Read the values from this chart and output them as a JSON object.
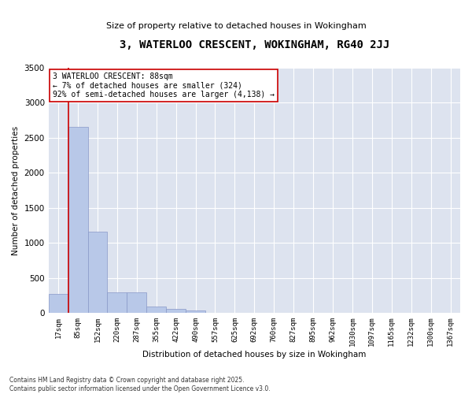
{
  "title": "3, WATERLOO CRESCENT, WOKINGHAM, RG40 2JJ",
  "subtitle": "Size of property relative to detached houses in Wokingham",
  "xlabel": "Distribution of detached houses by size in Wokingham",
  "ylabel": "Number of detached properties",
  "background_color": "#dde3ef",
  "bar_color": "#b8c8e8",
  "bar_edge_color": "#8898c8",
  "grid_color": "#ffffff",
  "bar_values": [
    270,
    2660,
    1160,
    290,
    290,
    95,
    55,
    35,
    0,
    0,
    0,
    0,
    0,
    0,
    0,
    0,
    0,
    0,
    0,
    0,
    0
  ],
  "x_labels": [
    "17sqm",
    "85sqm",
    "152sqm",
    "220sqm",
    "287sqm",
    "355sqm",
    "422sqm",
    "490sqm",
    "557sqm",
    "625sqm",
    "692sqm",
    "760sqm",
    "827sqm",
    "895sqm",
    "962sqm",
    "1030sqm",
    "1097sqm",
    "1165sqm",
    "1232sqm",
    "1300sqm",
    "1367sqm"
  ],
  "ylim": [
    0,
    3500
  ],
  "yticks": [
    0,
    500,
    1000,
    1500,
    2000,
    2500,
    3000,
    3500
  ],
  "property_line_x": 0.52,
  "annotation_title": "3 WATERLOO CRESCENT: 88sqm",
  "annotation_line1": "← 7% of detached houses are smaller (324)",
  "annotation_line2": "92% of semi-detached houses are larger (4,138) →",
  "annotation_color": "#cc0000",
  "footer_line1": "Contains HM Land Registry data © Crown copyright and database right 2025.",
  "footer_line2": "Contains public sector information licensed under the Open Government Licence v3.0."
}
